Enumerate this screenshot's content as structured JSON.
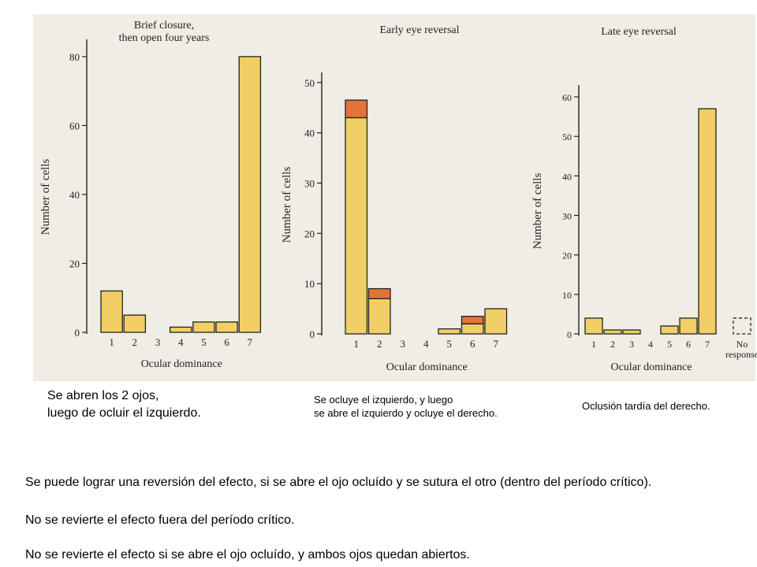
{
  "colors": {
    "bar_fill": "#f1cf64",
    "bar_stroke": "#222222",
    "increment_fill": "#e2733c",
    "background": "#efede4"
  },
  "chart_data": [
    {
      "type": "bar",
      "title": "Brief closure,\nthen open four years",
      "xlabel": "Ocular dominance",
      "ylabel": "Number of cells",
      "categories": [
        "1",
        "2",
        "3",
        "4",
        "5",
        "6",
        "7"
      ],
      "values": [
        12,
        5,
        0,
        1.5,
        3,
        3,
        80
      ],
      "ylim": [
        0,
        85
      ],
      "yticks": [
        0,
        20,
        40,
        60,
        80
      ]
    },
    {
      "type": "bar",
      "title": "Early eye reversal",
      "xlabel": "Ocular dominance",
      "ylabel": "Number of cells",
      "categories": [
        "1",
        "2",
        "3",
        "4",
        "5",
        "6",
        "7"
      ],
      "series": [
        {
          "values": [
            43,
            7,
            0,
            0,
            1,
            2,
            5
          ]
        },
        {
          "values": [
            3.5,
            2,
            0,
            0,
            0,
            1.5,
            0
          ]
        }
      ],
      "ylim": [
        0,
        52
      ],
      "yticks": [
        0,
        10,
        20,
        30,
        40,
        50
      ]
    },
    {
      "type": "bar",
      "title": "Late eye reversal",
      "xlabel": "Ocular dominance",
      "ylabel": "Number of cells",
      "categories": [
        "1",
        "2",
        "3",
        "4",
        "5",
        "6",
        "7",
        "No\nresponse"
      ],
      "values": [
        4,
        1,
        1,
        0,
        2,
        4,
        57,
        4
      ],
      "dashed_categories": [
        "No\nresponse"
      ],
      "ylim": [
        0,
        63
      ],
      "yticks": [
        0,
        10,
        20,
        30,
        40,
        50,
        60
      ]
    }
  ],
  "captions": {
    "left_line1": "Se abren los 2 ojos,",
    "left_line2": "luego de ocluir el izquierdo.",
    "middle_line1": "Se ocluye el izquierdo, y luego",
    "middle_line2": "se abre el izquierdo y ocluye el derecho.",
    "right": "Oclusión tardía del derecho."
  },
  "notes": [
    "Se puede lograr una reversión del efecto, si se abre el ojo ocluído y se sutura el otro (dentro del período crítico).",
    "No se revierte el efecto fuera del período crítico.",
    "No se revierte el efecto si se abre el ojo ocluído, y ambos ojos quedan abiertos."
  ]
}
